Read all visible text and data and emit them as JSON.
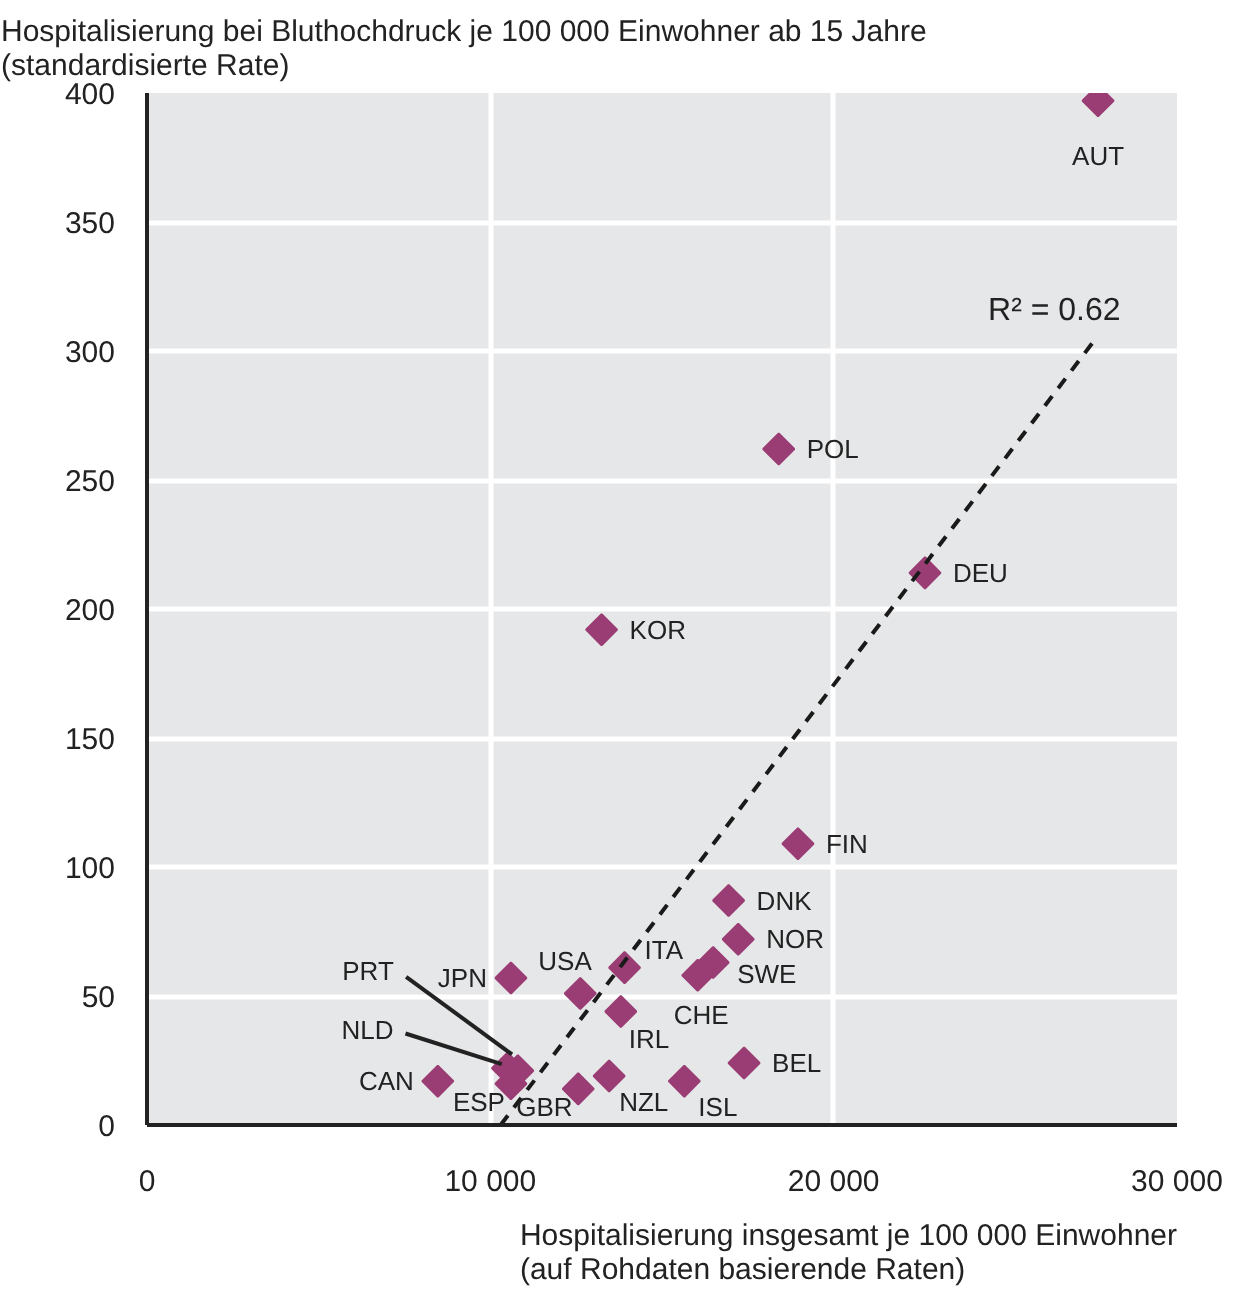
{
  "chart_data": {
    "type": "scatter",
    "ylabel": "Hospitalisierung bei Bluthochdruck je 100 000 Einwohner ab 15 Jahre\n(standardisierte Rate)",
    "xlabel": "Hospitalisierung insgesamt je 100 000 Einwohner\n(auf Rohdaten basierende Raten)",
    "xlim": [
      0,
      30000
    ],
    "xticks": [
      0,
      {
        "value": 10000,
        "label": "10 000"
      },
      {
        "value": 20000,
        "label": "20 000"
      },
      {
        "value": 30000,
        "label": "30 000"
      }
    ],
    "ylim": [
      0,
      400
    ],
    "yticks": [
      0,
      50,
      100,
      150,
      200,
      250,
      300,
      350,
      400
    ],
    "grid": true,
    "series": [
      {
        "marker": "diamond",
        "color": "#9b3d75",
        "x": [
          27700,
          18400,
          22660,
          13240,
          18960,
          16940,
          17220,
          16490,
          16040,
          13910,
          12620,
          10600,
          13800,
          17390,
          15650,
          13460,
          12560,
          8470,
          10600,
          10800,
          10500
        ],
        "values": [
          397,
          262,
          214,
          192,
          109,
          87,
          72,
          63,
          58,
          61,
          51,
          57,
          44,
          24,
          17,
          19,
          14,
          17,
          16,
          21,
          22
        ]
      },
      {
        "type": "line",
        "color": "#1a1a1a",
        "line_style": "dashed",
        "x": [
          10300,
          27700
        ],
        "values": [
          0,
          306
        ]
      }
    ],
    "annotations": [
      {
        "text": "AUT",
        "x": 27700,
        "y": 397
      },
      {
        "text": "POL",
        "x": 18400,
        "y": 262
      },
      {
        "text": "DEU",
        "x": 22660,
        "y": 214
      },
      {
        "text": "KOR",
        "x": 13240,
        "y": 192
      },
      {
        "text": "FIN",
        "x": 18960,
        "y": 109
      },
      {
        "text": "DNK",
        "x": 16940,
        "y": 87
      },
      {
        "text": "NOR",
        "x": 17220,
        "y": 72
      },
      {
        "text": "SWE",
        "x": 16490,
        "y": 63
      },
      {
        "text": "CHE",
        "x": 16040,
        "y": 58
      },
      {
        "text": "ITA",
        "x": 13910,
        "y": 61
      },
      {
        "text": "USA",
        "x": 12620,
        "y": 51
      },
      {
        "text": "JPN",
        "x": 10600,
        "y": 57
      },
      {
        "text": "IRL",
        "x": 13800,
        "y": 44
      },
      {
        "text": "BEL",
        "x": 17390,
        "y": 24
      },
      {
        "text": "ISL",
        "x": 15650,
        "y": 17
      },
      {
        "text": "NZL",
        "x": 13460,
        "y": 19
      },
      {
        "text": "GBR",
        "x": 12560,
        "y": 14
      },
      {
        "text": "CAN",
        "x": 8470,
        "y": 17
      },
      {
        "text": "ESP",
        "x": 10600,
        "y": 16
      },
      {
        "text": "PRT",
        "x": 10800,
        "y": 21
      },
      {
        "text": "NLD",
        "x": 10500,
        "y": 22
      },
      {
        "text": "R² = 0.62",
        "x": 27700,
        "y": 306
      }
    ]
  }
}
